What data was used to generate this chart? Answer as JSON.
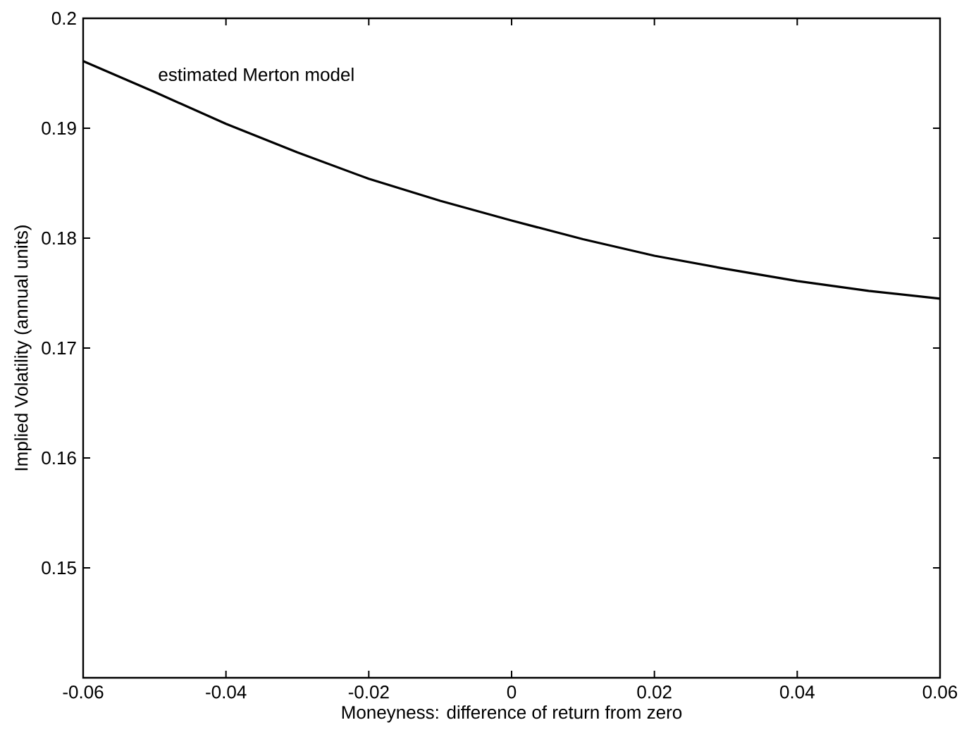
{
  "chart_data": {
    "type": "line",
    "xlabel": "Moneyness:  difference of return from zero",
    "ylabel": "Implied Volatility (annual units)",
    "x": [
      -0.06,
      -0.05,
      -0.04,
      -0.03,
      -0.02,
      -0.01,
      0,
      0.01,
      0.02,
      0.03,
      0.04,
      0.05,
      0.06
    ],
    "series": [
      {
        "name": "estimated Merton model",
        "color": "#000000",
        "values": [
          0.1961,
          0.1933,
          0.1904,
          0.1878,
          0.1854,
          0.1834,
          0.1816,
          0.1799,
          0.1784,
          0.1772,
          0.1761,
          0.1752,
          0.1745
        ]
      }
    ],
    "xlim": [
      -0.06,
      0.06
    ],
    "ylim": [
      0.14,
      0.2
    ],
    "xticks": [
      -0.06,
      -0.04,
      -0.02,
      0,
      0.02,
      0.04,
      0.06
    ],
    "yticks": [
      0.15,
      0.16,
      0.17,
      0.18,
      0.19,
      0.2
    ],
    "grid": false,
    "legend": false,
    "marker": "none",
    "line_style": "solid"
  }
}
